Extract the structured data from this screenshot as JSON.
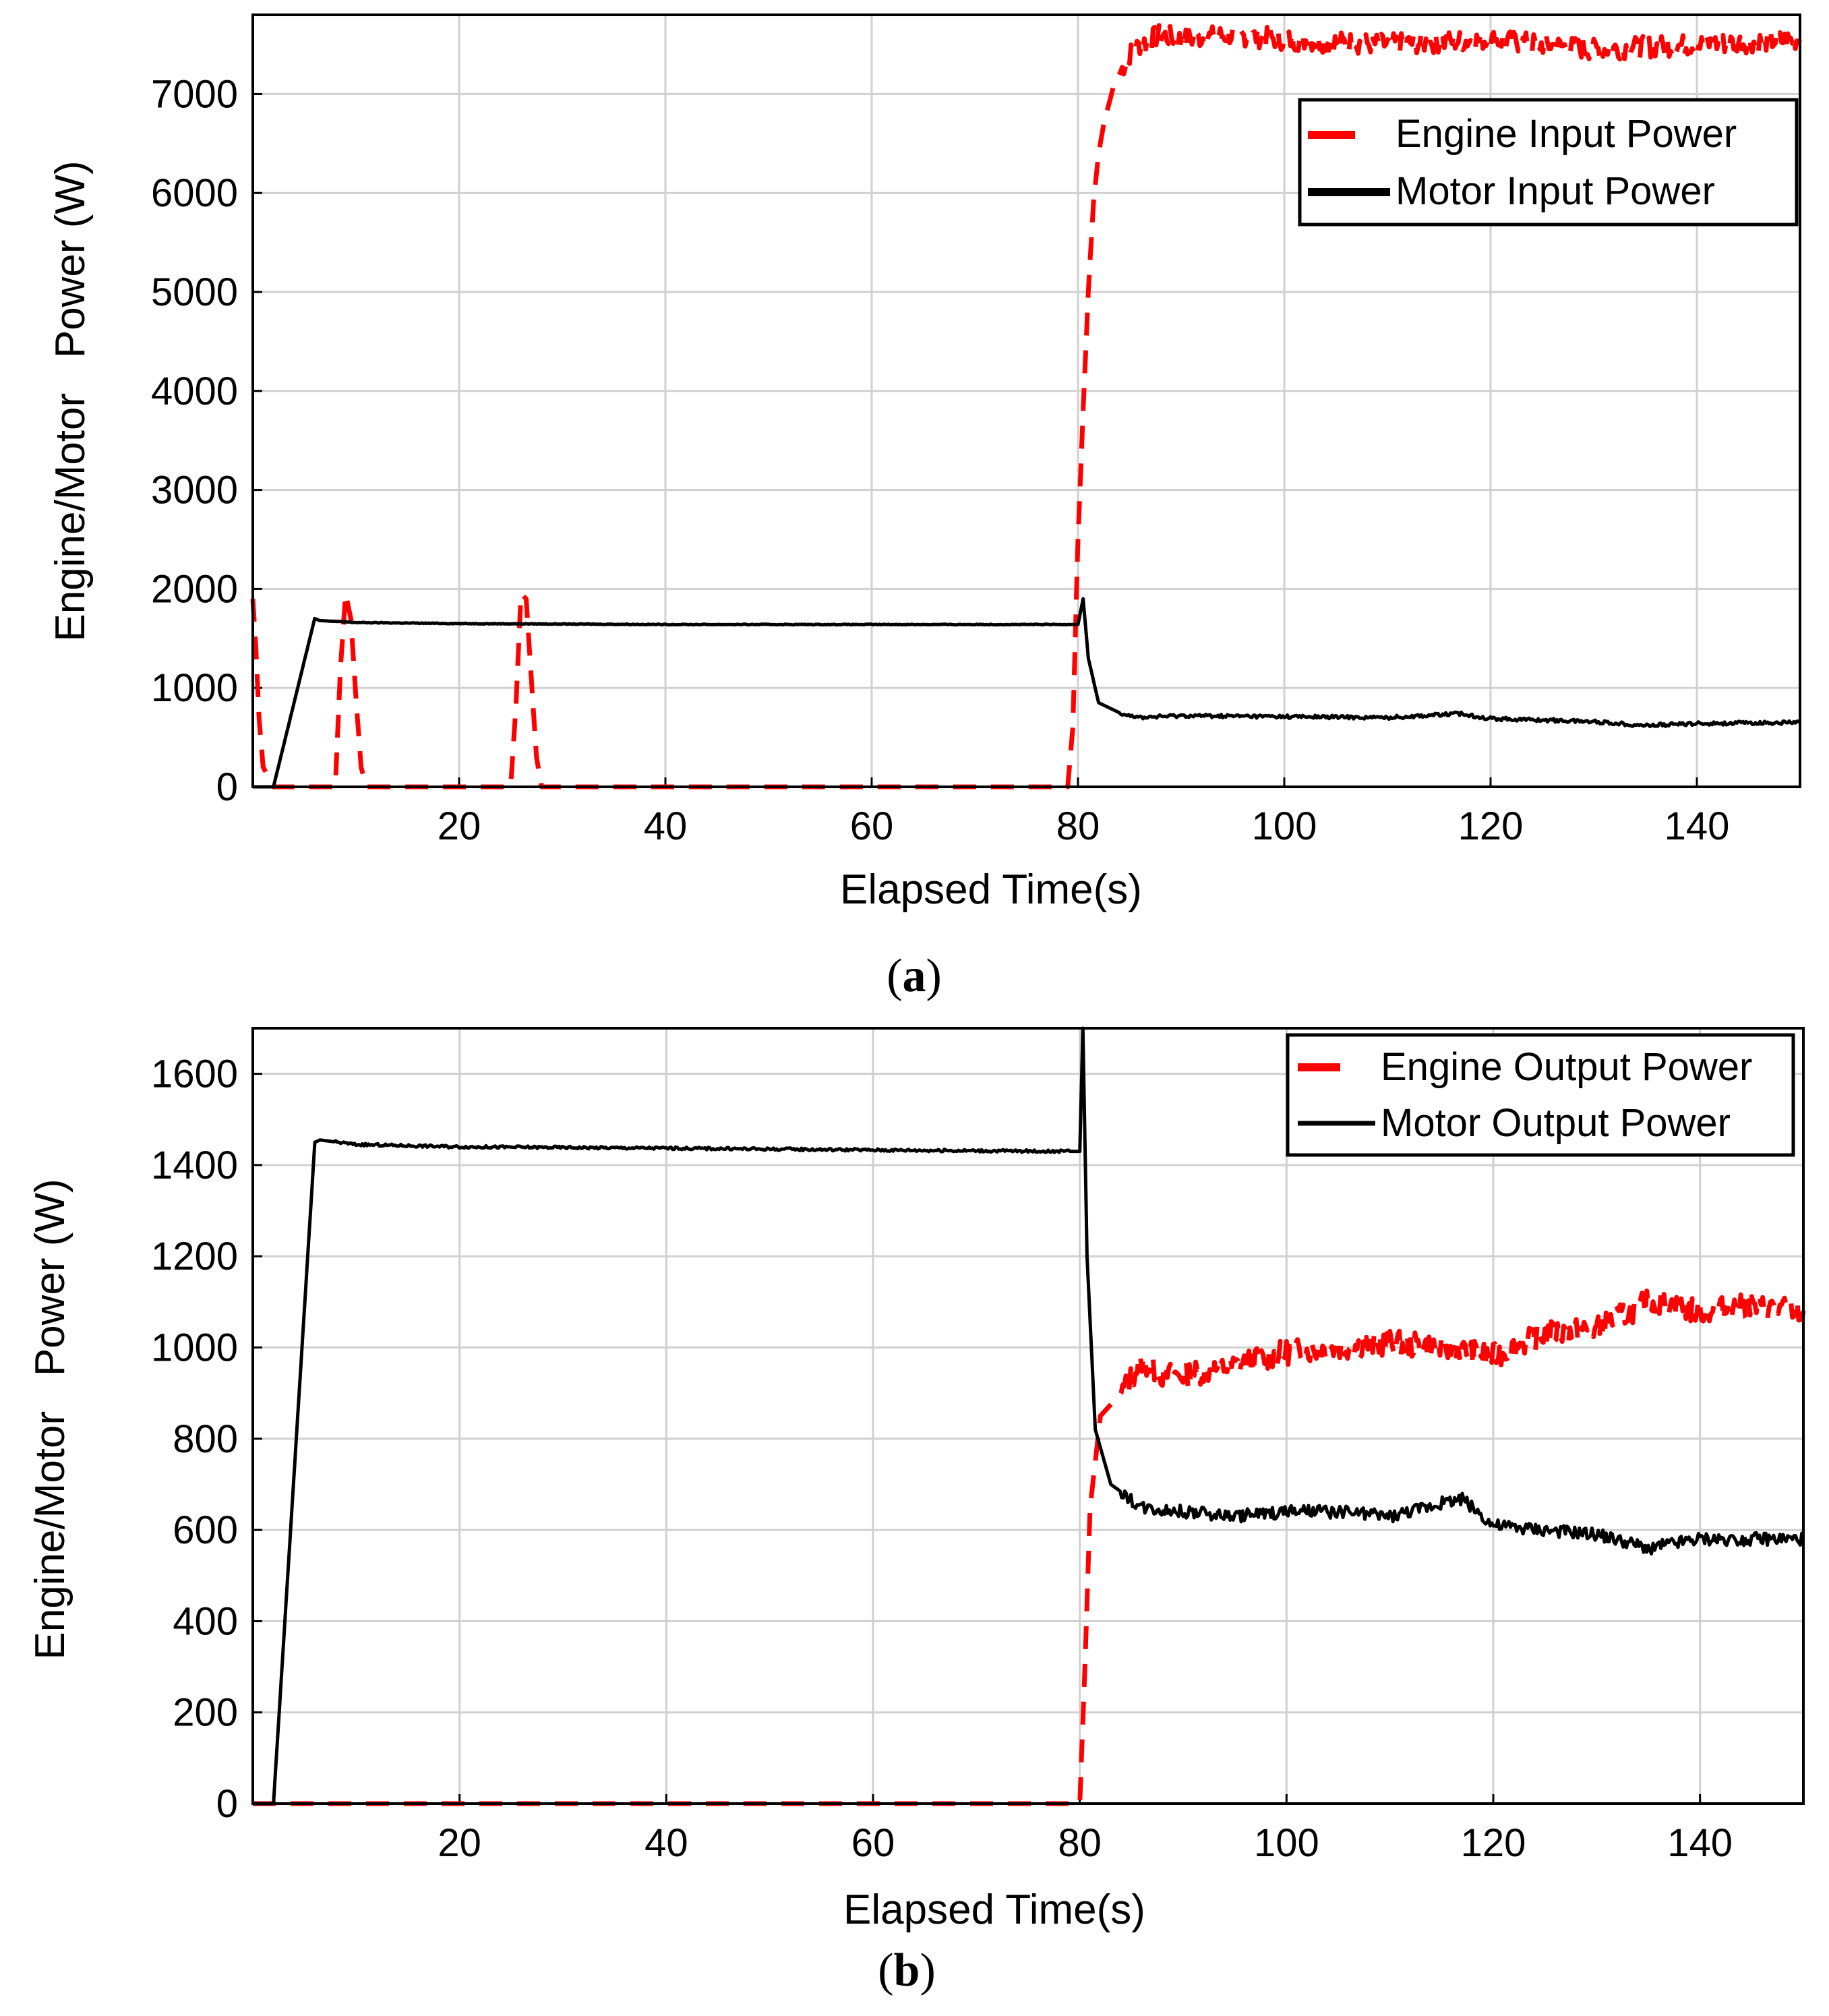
{
  "chart_data": [
    {
      "type": "line",
      "panel_label": "a",
      "xlabel": "Elapsed Time(s)",
      "ylabel": "Engine/Motor   Power (W)",
      "xlim": [
        0,
        150
      ],
      "ylim": [
        0,
        7800
      ],
      "xticks": [
        20,
        40,
        60,
        80,
        100,
        120,
        140
      ],
      "yticks": [
        0,
        1000,
        2000,
        3000,
        4000,
        5000,
        6000,
        7000
      ],
      "grid": true,
      "legend_position": "top-right",
      "series": [
        {
          "name": "Engine Input Power",
          "color": "#ff0000",
          "style": "dashed",
          "x": [
            0,
            0.3,
            0.6,
            1,
            2,
            7,
            8,
            8.5,
            9,
            9.5,
            10,
            10.5,
            11,
            25,
            25.5,
            26,
            26.5,
            27,
            27.5,
            28,
            79,
            79.5,
            80,
            80.5,
            81,
            81.5,
            82,
            82.5,
            83,
            83.5,
            84,
            85,
            86,
            87,
            88,
            90,
            95,
            100,
            110,
            120,
            130,
            140,
            150
          ],
          "y": [
            1900,
            1400,
            700,
            200,
            0,
            0,
            0,
            1200,
            1950,
            1700,
            900,
            200,
            0,
            0,
            800,
            1950,
            1900,
            1100,
            300,
            0,
            0,
            600,
            2500,
            3800,
            5000,
            5900,
            6400,
            6700,
            6900,
            7100,
            7200,
            7400,
            7500,
            7550,
            7600,
            7550,
            7600,
            7550,
            7500,
            7550,
            7450,
            7500,
            7550
          ]
        },
        {
          "name": "Motor Input Power",
          "color": "#000000",
          "style": "solid",
          "x": [
            0,
            2,
            6,
            6.5,
            10,
            20,
            40,
            60,
            79,
            80,
            80.5,
            81,
            82,
            84,
            86,
            90,
            100,
            110,
            117,
            120,
            130,
            135,
            140,
            150
          ],
          "y": [
            0,
            0,
            1700,
            1680,
            1660,
            1650,
            1640,
            1640,
            1640,
            1640,
            1900,
            1300,
            850,
            750,
            700,
            720,
            710,
            700,
            740,
            690,
            660,
            620,
            640,
            650
          ]
        }
      ]
    },
    {
      "type": "line",
      "panel_label": "b",
      "xlabel": "Elapsed Time(s)",
      "ylabel": "Engine/Motor   Power (W)",
      "xlim": [
        0,
        150
      ],
      "ylim": [
        0,
        1700
      ],
      "xticks": [
        20,
        40,
        60,
        80,
        100,
        120,
        140
      ],
      "yticks": [
        0,
        200,
        400,
        600,
        800,
        1000,
        1200,
        1400,
        1600
      ],
      "grid": true,
      "legend_position": "top-right",
      "series": [
        {
          "name": "Engine Output Power",
          "color": "#ff0000",
          "style": "dashed",
          "x": [
            0,
            79.5,
            80,
            80.5,
            81,
            82,
            84,
            86,
            88,
            90,
            95,
            100,
            105,
            110,
            115,
            120,
            125,
            130,
            135,
            140,
            145,
            150
          ],
          "y": [
            0,
            0,
            0,
            300,
            650,
            850,
            900,
            970,
            940,
            940,
            960,
            990,
            1000,
            1010,
            1000,
            980,
            1030,
            1040,
            1100,
            1080,
            1090,
            1080
          ]
        },
        {
          "name": "Motor Output Power",
          "color": "#000000",
          "style": "solid",
          "x": [
            0,
            2,
            6,
            6.5,
            10,
            20,
            40,
            60,
            79.5,
            80,
            80.3,
            80.7,
            81.5,
            83,
            86,
            90,
            95,
            100,
            105,
            110,
            117,
            120,
            125,
            130,
            135,
            140,
            145,
            150
          ],
          "y": [
            0,
            0,
            1450,
            1455,
            1445,
            1440,
            1437,
            1433,
            1430,
            1430,
            1700,
            1200,
            820,
            700,
            650,
            640,
            630,
            640,
            640,
            630,
            670,
            610,
            600,
            590,
            560,
            580,
            580,
            580
          ]
        }
      ]
    }
  ]
}
